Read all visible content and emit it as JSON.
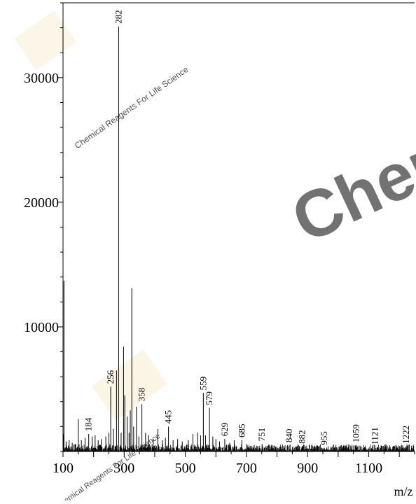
{
  "watermark": {
    "brand_text": "Chem",
    "tagline_1": "Chemical Reagents For Life Science",
    "tagline_2": "Chemical Reagents For Life Science",
    "accent_color": "#f2e2b3",
    "brand_color": "#e3e3e3"
  },
  "chart_data": {
    "type": "bar",
    "title": "",
    "xlabel": "m/z",
    "ylabel": "",
    "xlim": [
      100,
      1250
    ],
    "ylim": [
      0,
      36000
    ],
    "x_ticks": [
      100,
      300,
      500,
      700,
      900,
      1100
    ],
    "x_tick_labels": [
      "100",
      "300",
      "500",
      "700",
      "900",
      "1100"
    ],
    "y_ticks": [
      10000,
      20000,
      30000
    ],
    "y_tick_labels": [
      "10000",
      "20000",
      "30000"
    ],
    "grid": false,
    "series": [
      {
        "name": "",
        "color": "#000000",
        "peaks": [
          {
            "x": 102,
            "y": 1400
          },
          {
            "x": 103,
            "y": 13700
          },
          {
            "x": 110,
            "y": 800
          },
          {
            "x": 120,
            "y": 900
          },
          {
            "x": 130,
            "y": 700
          },
          {
            "x": 140,
            "y": 600
          },
          {
            "x": 150,
            "y": 2600
          },
          {
            "x": 160,
            "y": 900
          },
          {
            "x": 172,
            "y": 1100
          },
          {
            "x": 184,
            "y": 1400,
            "label": "184"
          },
          {
            "x": 195,
            "y": 1200
          },
          {
            "x": 205,
            "y": 1300
          },
          {
            "x": 215,
            "y": 900
          },
          {
            "x": 225,
            "y": 1000
          },
          {
            "x": 240,
            "y": 1200
          },
          {
            "x": 250,
            "y": 1500
          },
          {
            "x": 256,
            "y": 5200,
            "label": "256"
          },
          {
            "x": 265,
            "y": 1800
          },
          {
            "x": 275,
            "y": 6500
          },
          {
            "x": 282,
            "y": 34100,
            "label": "282"
          },
          {
            "x": 290,
            "y": 1500
          },
          {
            "x": 298,
            "y": 8400
          },
          {
            "x": 302,
            "y": 4500
          },
          {
            "x": 310,
            "y": 2800
          },
          {
            "x": 316,
            "y": 1500
          },
          {
            "x": 320,
            "y": 3300
          },
          {
            "x": 325,
            "y": 13100
          },
          {
            "x": 331,
            "y": 2000
          },
          {
            "x": 340,
            "y": 3600
          },
          {
            "x": 348,
            "y": 1200
          },
          {
            "x": 358,
            "y": 3800,
            "label": "358"
          },
          {
            "x": 370,
            "y": 1500
          },
          {
            "x": 380,
            "y": 1300
          },
          {
            "x": 395,
            "y": 1000
          },
          {
            "x": 410,
            "y": 1800
          },
          {
            "x": 425,
            "y": 900
          },
          {
            "x": 435,
            "y": 1100
          },
          {
            "x": 445,
            "y": 2000,
            "label": "445"
          },
          {
            "x": 460,
            "y": 900
          },
          {
            "x": 475,
            "y": 1000
          },
          {
            "x": 490,
            "y": 800
          },
          {
            "x": 510,
            "y": 900
          },
          {
            "x": 525,
            "y": 1400
          },
          {
            "x": 540,
            "y": 1500
          },
          {
            "x": 550,
            "y": 1300
          },
          {
            "x": 559,
            "y": 4700,
            "label": "559"
          },
          {
            "x": 566,
            "y": 1300
          },
          {
            "x": 579,
            "y": 3500,
            "label": "579"
          },
          {
            "x": 590,
            "y": 1200
          },
          {
            "x": 600,
            "y": 1000
          },
          {
            "x": 612,
            "y": 800
          },
          {
            "x": 629,
            "y": 1000,
            "label": "629"
          },
          {
            "x": 645,
            "y": 700
          },
          {
            "x": 660,
            "y": 900
          },
          {
            "x": 685,
            "y": 900,
            "label": "685"
          },
          {
            "x": 700,
            "y": 600
          },
          {
            "x": 725,
            "y": 500
          },
          {
            "x": 751,
            "y": 600,
            "label": "751"
          },
          {
            "x": 780,
            "y": 400
          },
          {
            "x": 810,
            "y": 400
          },
          {
            "x": 840,
            "y": 500,
            "label": "840"
          },
          {
            "x": 860,
            "y": 400
          },
          {
            "x": 882,
            "y": 400,
            "label": "882"
          },
          {
            "x": 920,
            "y": 350
          },
          {
            "x": 955,
            "y": 300,
            "label": "955"
          },
          {
            "x": 990,
            "y": 300
          },
          {
            "x": 1030,
            "y": 300
          },
          {
            "x": 1059,
            "y": 500,
            "label": "1059"
          },
          {
            "x": 1090,
            "y": 300
          },
          {
            "x": 1121,
            "y": 300,
            "label": "1121"
          },
          {
            "x": 1160,
            "y": 250
          },
          {
            "x": 1190,
            "y": 250
          },
          {
            "x": 1222,
            "y": 400,
            "label": "1222"
          },
          {
            "x": 1240,
            "y": 300
          }
        ]
      }
    ]
  }
}
